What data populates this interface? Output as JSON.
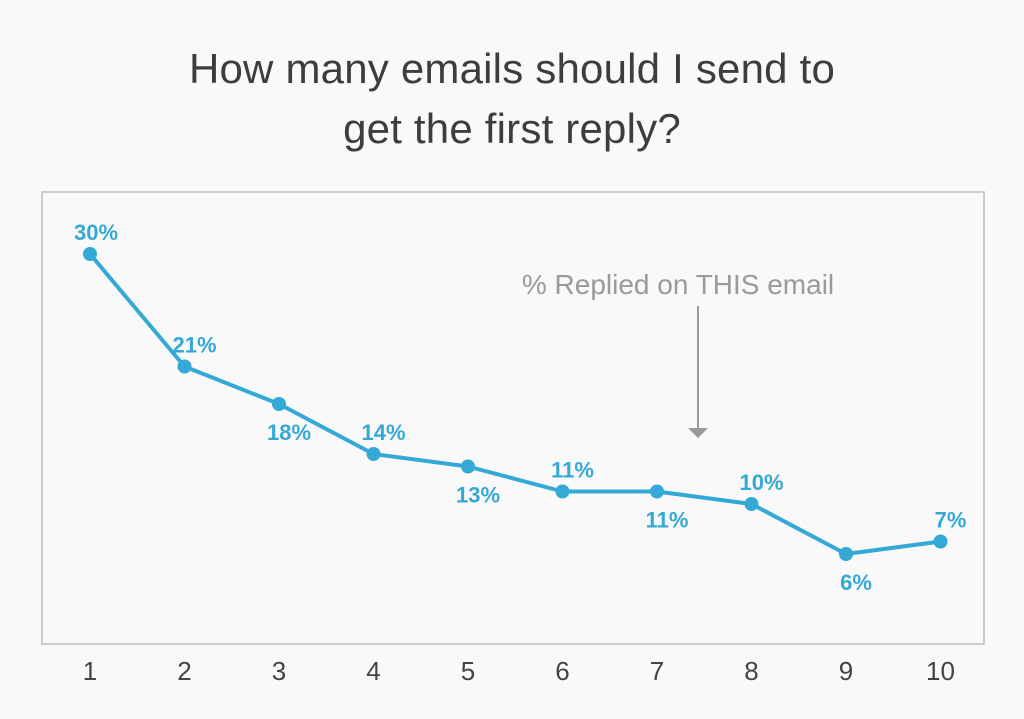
{
  "title_lines": [
    "How many emails should I send to",
    "get the first reply?"
  ],
  "chart_data": {
    "type": "line",
    "title": "How many emails should I send to get the first reply?",
    "categories": [
      "1",
      "2",
      "3",
      "4",
      "5",
      "6",
      "7",
      "8",
      "9",
      "10"
    ],
    "values": [
      30,
      21,
      18,
      14,
      13,
      11,
      11,
      10,
      6,
      7
    ],
    "data_labels": [
      "30%",
      "21%",
      "18%",
      "14%",
      "13%",
      "11%",
      "11%",
      "10%",
      "6%",
      "7%"
    ],
    "annotation": "% Replied on THIS email",
    "xlabel": "",
    "ylabel": "",
    "ylim": [
      0,
      35
    ],
    "grid": false,
    "colors": {
      "line": "#35a9d6",
      "label": "#35a9d6",
      "annotation": "#9a9a9a",
      "frame": "#bdbdbd",
      "tick": "#444444"
    }
  }
}
